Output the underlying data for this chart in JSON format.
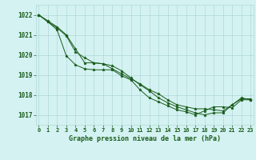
{
  "title": "Graphe pression niveau de la mer (hPa)",
  "x_labels": [
    "0",
    "1",
    "2",
    "3",
    "4",
    "5",
    "6",
    "7",
    "8",
    "9",
    "10",
    "11",
    "12",
    "13",
    "14",
    "15",
    "16",
    "17",
    "18",
    "19",
    "20",
    "21",
    "22",
    "23"
  ],
  "ylim": [
    1016.5,
    1022.5
  ],
  "yticks": [
    1017,
    1018,
    1019,
    1020,
    1021,
    1022
  ],
  "xlim": [
    -0.3,
    23.3
  ],
  "bg_color": "#d4f2f2",
  "grid_color": "#aed8d8",
  "line_color": "#1a5c1a",
  "series": [
    [
      1022.0,
      1021.7,
      1021.4,
      1021.0,
      1020.3,
      1019.6,
      1019.6,
      1019.55,
      1019.45,
      1019.2,
      1018.85,
      1018.5,
      1018.2,
      1017.85,
      1017.6,
      1017.4,
      1017.25,
      1017.1,
      1017.0,
      1017.1,
      1017.1,
      1017.5,
      1017.8,
      1017.8
    ],
    [
      1022.0,
      1021.65,
      1021.35,
      1020.95,
      1020.15,
      1019.85,
      1019.6,
      1019.55,
      1019.3,
      1019.05,
      1018.8,
      1018.55,
      1018.25,
      1018.05,
      1017.75,
      1017.5,
      1017.4,
      1017.3,
      1017.3,
      1017.25,
      1017.2,
      1017.5,
      1017.85,
      1017.75
    ],
    [
      1022.0,
      1021.65,
      1021.25,
      1019.95,
      1019.5,
      1019.3,
      1019.25,
      1019.25,
      1019.25,
      1018.95,
      1018.75,
      1018.25,
      1017.85,
      1017.65,
      1017.45,
      1017.25,
      1017.15,
      1017.0,
      1017.2,
      1017.4,
      1017.4,
      1017.35,
      1017.75,
      1017.75
    ]
  ]
}
